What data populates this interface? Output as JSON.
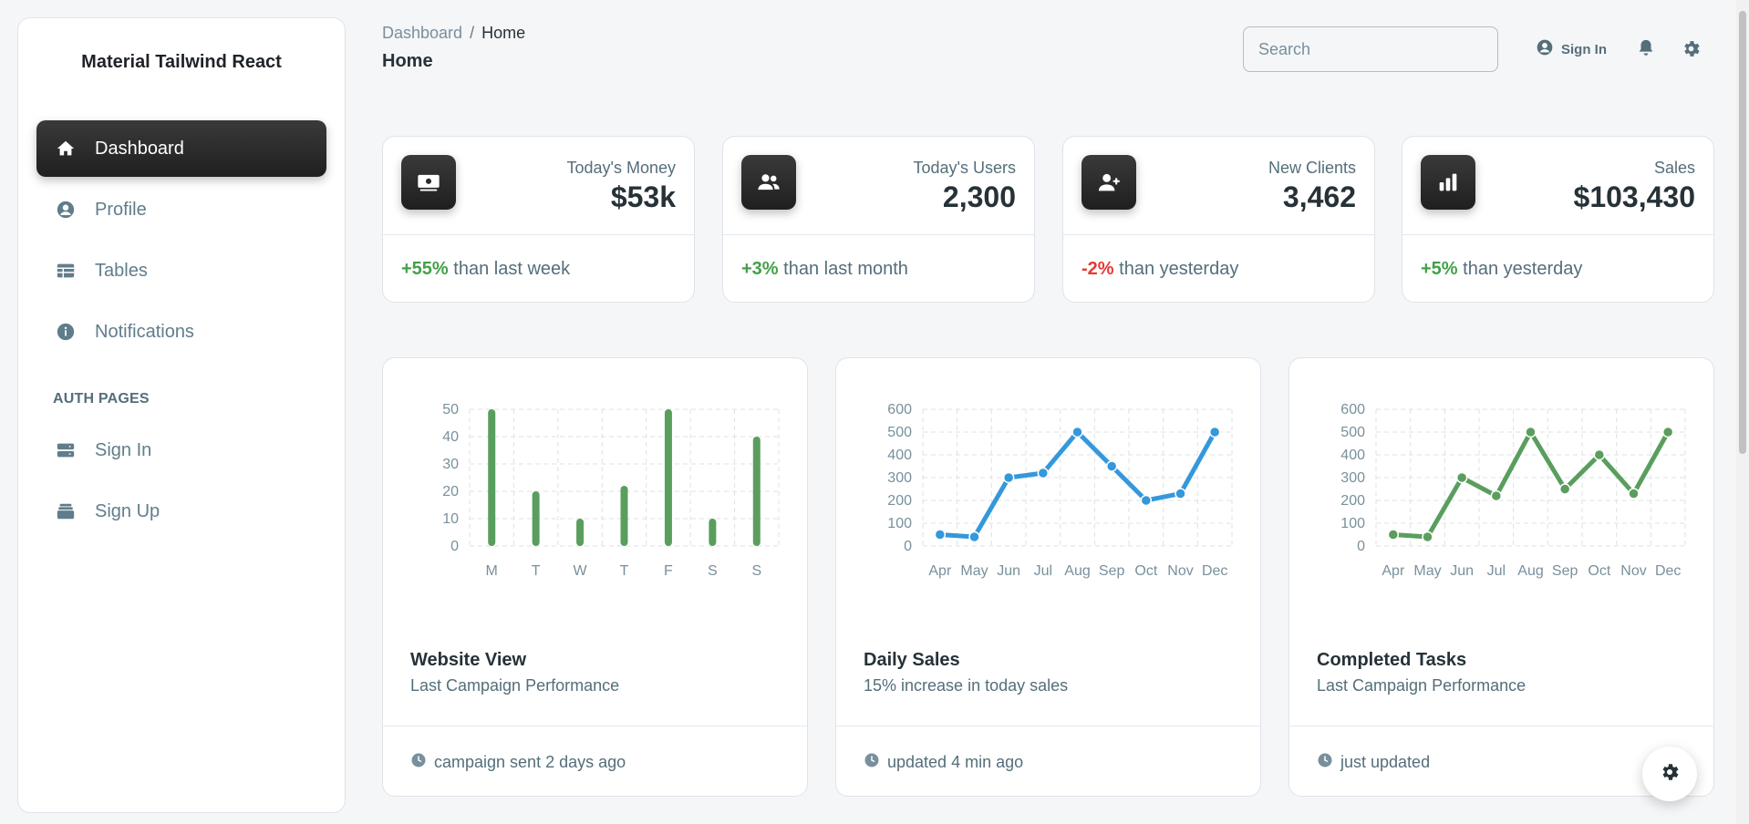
{
  "sidebar": {
    "brand": "Material Tailwind React",
    "items": [
      {
        "label": "Dashboard",
        "icon": "home-icon",
        "active": true
      },
      {
        "label": "Profile",
        "icon": "user-circle-icon"
      },
      {
        "label": "Tables",
        "icon": "table-icon"
      },
      {
        "label": "Notifications",
        "icon": "info-icon"
      }
    ],
    "auth_section": "AUTH PAGES",
    "auth_items": [
      {
        "label": "Sign In",
        "icon": "server-icon"
      },
      {
        "label": "Sign Up",
        "icon": "stack-icon"
      }
    ]
  },
  "header": {
    "breadcrumb": {
      "root": "Dashboard",
      "separator": "/",
      "current": "Home"
    },
    "title": "Home",
    "search_placeholder": "Search",
    "signin_label": "Sign In"
  },
  "stats": [
    {
      "label": "Today's Money",
      "value": "$53k",
      "delta": "+55%",
      "delta_type": "pos",
      "suffix": "than last week",
      "icon": "banknotes-icon"
    },
    {
      "label": "Today's Users",
      "value": "2,300",
      "delta": "+3%",
      "delta_type": "pos",
      "suffix": "than last month",
      "icon": "users-icon"
    },
    {
      "label": "New Clients",
      "value": "3,462",
      "delta": "-2%",
      "delta_type": "neg",
      "suffix": "than yesterday",
      "icon": "user-plus-icon"
    },
    {
      "label": "Sales",
      "value": "$103,430",
      "delta": "+5%",
      "delta_type": "pos",
      "suffix": "than yesterday",
      "icon": "chart-bar-icon"
    }
  ],
  "charts": [
    {
      "title": "Website View",
      "subtitle": "Last Campaign Performance",
      "footer": "campaign sent 2 days ago"
    },
    {
      "title": "Daily Sales",
      "subtitle": "15% increase in today sales",
      "footer": "updated 4 min ago"
    },
    {
      "title": "Completed Tasks",
      "subtitle": "Last Campaign Performance",
      "footer": "just updated"
    }
  ],
  "colors": {
    "green": "#5a9e5e",
    "blue": "#3498db",
    "positive": "#43a047",
    "negative": "#e53935"
  },
  "chart_data": [
    {
      "type": "bar",
      "categories": [
        "M",
        "T",
        "W",
        "T",
        "F",
        "S",
        "S"
      ],
      "values": [
        50,
        20,
        10,
        22,
        50,
        10,
        40
      ],
      "ylim": [
        0,
        50
      ],
      "yticks": [
        0,
        10,
        20,
        30,
        40,
        50
      ],
      "color": "#5a9e5e",
      "grid": true
    },
    {
      "type": "line",
      "categories": [
        "Apr",
        "May",
        "Jun",
        "Jul",
        "Aug",
        "Sep",
        "Oct",
        "Nov",
        "Dec"
      ],
      "values": [
        50,
        40,
        300,
        320,
        500,
        350,
        200,
        230,
        500
      ],
      "ylim": [
        0,
        600
      ],
      "yticks": [
        0,
        100,
        200,
        300,
        400,
        500,
        600
      ],
      "color": "#3498db",
      "grid": true
    },
    {
      "type": "line",
      "categories": [
        "Apr",
        "May",
        "Jun",
        "Jul",
        "Aug",
        "Sep",
        "Oct",
        "Nov",
        "Dec"
      ],
      "values": [
        50,
        40,
        300,
        220,
        500,
        250,
        400,
        230,
        500
      ],
      "ylim": [
        0,
        600
      ],
      "yticks": [
        0,
        100,
        200,
        300,
        400,
        500,
        600
      ],
      "color": "#5a9e5e",
      "grid": true
    }
  ]
}
